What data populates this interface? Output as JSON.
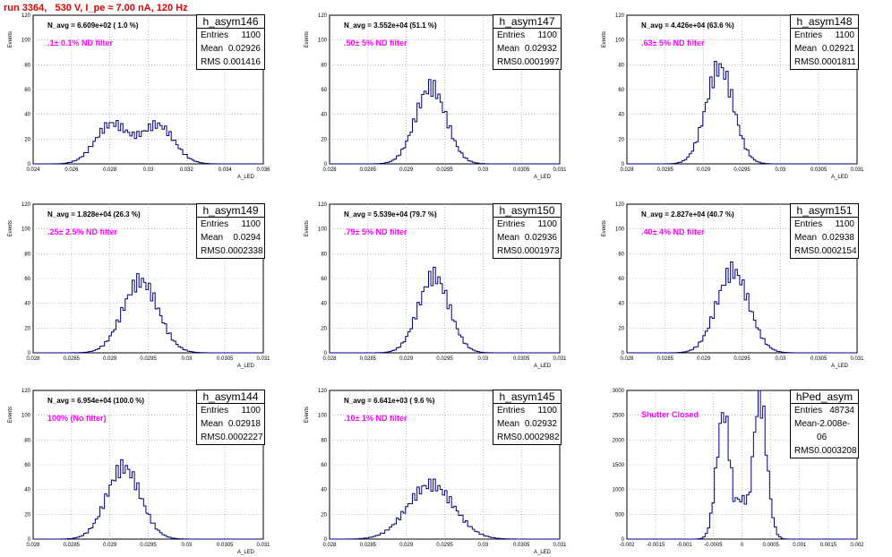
{
  "header": {
    "title": "run 3364,   530 V, I_pe ≈ 7.00 nA, 120 Hz"
  },
  "axis_labels": {
    "y": "Events",
    "x": "A_LED"
  },
  "colors": {
    "title": "#e00000",
    "annotation": "#ff00ff",
    "histogram": "#000080",
    "grid": "#999999"
  },
  "chart_data": [
    {
      "type": "bar",
      "name": "h_asym146",
      "title": "N_avg = 6.609e+02 ( 1.0 %)",
      "annotation": ".1± 0.1% ND filter",
      "stats": {
        "Entries": "1100",
        "Mean": "0.02926",
        "RMS": "0.001416"
      },
      "xlim": [
        0.024,
        0.036
      ],
      "ylim": [
        0,
        120
      ],
      "xticks": [
        "0.024",
        "0.026",
        "0.028",
        "0.03",
        "0.032",
        "0.034",
        "0.036"
      ],
      "yticks": [
        "0",
        "20",
        "40",
        "60",
        "80",
        "100",
        "120"
      ],
      "peaks": [
        {
          "mu": 0.0281,
          "sigma": 0.00085,
          "amp": 32
        },
        {
          "mu": 0.0305,
          "sigma": 0.00085,
          "amp": 31
        }
      ],
      "xlabel": "A_LED",
      "ylabel": "Events"
    },
    {
      "type": "bar",
      "name": "h_asym147",
      "title": "N_avg = 3.552e+04 (51.1 %)",
      "annotation": ".50± 5% ND filter",
      "stats": {
        "Entries": "1100",
        "Mean": "0.02932",
        "RMS": "0.0001997"
      },
      "xlim": [
        0.028,
        0.031
      ],
      "ylim": [
        0,
        120
      ],
      "xticks": [
        "0.028",
        "0.0285",
        "0.029",
        "0.0295",
        "0.03",
        "0.0305",
        "0.031"
      ],
      "yticks": [
        "0",
        "20",
        "40",
        "60",
        "80",
        "100",
        "120"
      ],
      "peaks": [
        {
          "mu": 0.02932,
          "sigma": 0.0002,
          "amp": 62
        }
      ],
      "xlabel": "A_LED",
      "ylabel": "Events"
    },
    {
      "type": "bar",
      "name": "h_asym148",
      "title": "N_avg = 4.426e+04 (63.6 %)",
      "annotation": ".63± 5% ND filter",
      "stats": {
        "Entries": "1100",
        "Mean": "0.02921",
        "RMS": "0.0001811"
      },
      "xlim": [
        0.028,
        0.031
      ],
      "ylim": [
        0,
        120
      ],
      "xticks": [
        "0.028",
        "0.0285",
        "0.029",
        "0.0295",
        "0.03",
        "0.0305",
        "0.031"
      ],
      "yticks": [
        "0",
        "20",
        "40",
        "60",
        "80",
        "100",
        "120"
      ],
      "peaks": [
        {
          "mu": 0.02921,
          "sigma": 0.00018,
          "amp": 78
        }
      ],
      "xlabel": "A_LED",
      "ylabel": "Events"
    },
    {
      "type": "bar",
      "name": "h_asym149",
      "title": "N_avg = 1.828e+04 (26.3 %)",
      "annotation": ".25± 2.5% ND filter",
      "stats": {
        "Entries": "1100",
        "Mean": "0.0294",
        "RMS": "0.0002338"
      },
      "xlim": [
        0.028,
        0.031
      ],
      "ylim": [
        0,
        120
      ],
      "xticks": [
        "0.028",
        "0.0285",
        "0.029",
        "0.0295",
        "0.03",
        "0.0305",
        "0.031"
      ],
      "yticks": [
        "0",
        "20",
        "40",
        "60",
        "80",
        "100",
        "120"
      ],
      "peaks": [
        {
          "mu": 0.0294,
          "sigma": 0.00023,
          "amp": 58
        }
      ],
      "xlabel": "A_LED",
      "ylabel": "Events"
    },
    {
      "type": "bar",
      "name": "h_asym150",
      "title": "N_avg = 5.539e+04 (79.7 %)",
      "annotation": ".79± 5% ND filter",
      "stats": {
        "Entries": "1100",
        "Mean": "0.02936",
        "RMS": "0.0001973"
      },
      "xlim": [
        0.028,
        0.031
      ],
      "ylim": [
        0,
        120
      ],
      "xticks": [
        "0.028",
        "0.0285",
        "0.029",
        "0.0295",
        "0.03",
        "0.0305",
        "0.031"
      ],
      "yticks": [
        "0",
        "20",
        "40",
        "60",
        "80",
        "100",
        "120"
      ],
      "peaks": [
        {
          "mu": 0.02936,
          "sigma": 0.0002,
          "amp": 62
        }
      ],
      "xlabel": "A_LED",
      "ylabel": "Events"
    },
    {
      "type": "bar",
      "name": "h_asym151",
      "title": "N_avg = 2.827e+04 (40.7 %)",
      "annotation": ".40± 4% ND filter",
      "stats": {
        "Entries": "1100",
        "Mean": "0.02938",
        "RMS": "0.0002154"
      },
      "xlim": [
        0.028,
        0.031
      ],
      "ylim": [
        0,
        120
      ],
      "xticks": [
        "0.028",
        "0.0285",
        "0.029",
        "0.0295",
        "0.03",
        "0.0305",
        "0.031"
      ],
      "yticks": [
        "0",
        "20",
        "40",
        "60",
        "80",
        "100",
        "120"
      ],
      "peaks": [
        {
          "mu": 0.02938,
          "sigma": 0.00021,
          "amp": 66
        }
      ],
      "xlabel": "A_LED",
      "ylabel": "Events"
    },
    {
      "type": "bar",
      "name": "h_asym144",
      "title": "N_avg = 6.954e+04 (100.0 %)",
      "annotation": "100% (No filter)",
      "stats": {
        "Entries": "1100",
        "Mean": "0.02918",
        "RMS": "0.0002227"
      },
      "xlim": [
        0.028,
        0.031
      ],
      "ylim": [
        0,
        120
      ],
      "xticks": [
        "0.028",
        "0.0285",
        "0.029",
        "0.0295",
        "0.03",
        "0.0305",
        "0.031"
      ],
      "yticks": [
        "0",
        "20",
        "40",
        "60",
        "80",
        "100",
        "120"
      ],
      "peaks": [
        {
          "mu": 0.02918,
          "sigma": 0.00022,
          "amp": 58
        }
      ],
      "xlabel": "A_LED",
      "ylabel": "Events"
    },
    {
      "type": "bar",
      "name": "h_asym145",
      "title": "N_avg = 6.641e+03 ( 9.6 %)",
      "annotation": ".10± 1% ND filter",
      "stats": {
        "Entries": "1100",
        "Mean": "0.02932",
        "RMS": "0.0002982"
      },
      "xlim": [
        0.028,
        0.031
      ],
      "ylim": [
        0,
        120
      ],
      "xticks": [
        "0.028",
        "0.0285",
        "0.029",
        "0.0295",
        "0.03",
        "0.0305",
        "0.031"
      ],
      "yticks": [
        "0",
        "20",
        "40",
        "60",
        "80",
        "100",
        "120"
      ],
      "peaks": [
        {
          "mu": 0.02932,
          "sigma": 0.0003,
          "amp": 44
        }
      ],
      "xlabel": "A_LED",
      "ylabel": "Events"
    },
    {
      "type": "bar",
      "name": "hPed_asym",
      "title": "",
      "annotation": "Shutter Closed",
      "stats": {
        "Entries": "48734",
        "Mean": "-2.008e-06",
        "RMS": "0.0003208"
      },
      "xlim": [
        -0.002,
        0.002
      ],
      "ylim": [
        0,
        3000
      ],
      "xticks": [
        "-0.002",
        "-0.0015",
        "-0.001",
        "-0.0005",
        "0",
        "0.0005",
        "0.001",
        "0.0015",
        "0.002"
      ],
      "yticks": [
        "0",
        "500",
        "1000",
        "1500",
        "2000",
        "2500",
        "3000"
      ],
      "peaks": [
        {
          "mu": -0.00032,
          "sigma": 0.00012,
          "amp": 2550
        },
        {
          "mu": 0.00031,
          "sigma": 0.00012,
          "amp": 2850
        }
      ],
      "base": {
        "amp": 800
      },
      "xlabel": "",
      "ylabel": ""
    }
  ]
}
